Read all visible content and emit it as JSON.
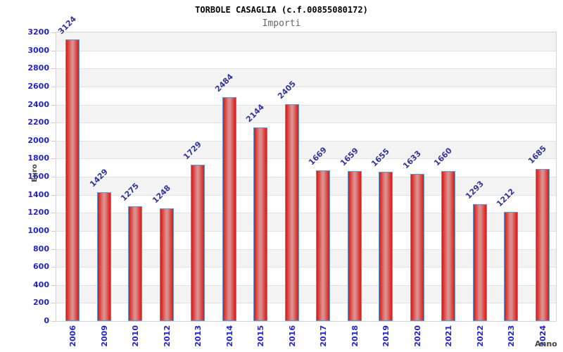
{
  "chart_data": {
    "type": "bar",
    "title": "TORBOLE CASAGLIA (c.f.00855080172)",
    "subtitle": "Importi",
    "xlabel": "Anno",
    "ylabel": "Euro",
    "categories": [
      "2006",
      "2009",
      "2010",
      "2012",
      "2013",
      "2014",
      "2015",
      "2016",
      "2017",
      "2018",
      "2019",
      "2020",
      "2021",
      "2022",
      "2023",
      "2024"
    ],
    "values": [
      3124,
      1429,
      1275,
      1248,
      1729,
      2484,
      2144,
      2405,
      1669,
      1659,
      1655,
      1633,
      1660,
      1293,
      1212,
      1685
    ],
    "ylim": [
      0,
      3200
    ],
    "ytick_step": 200,
    "yticks": [
      3200,
      3000,
      2800,
      2600,
      2400,
      2200,
      2000,
      1800,
      1600,
      1400,
      1200,
      1000,
      800,
      600,
      400,
      200,
      0
    ],
    "grid": "horizontal",
    "background_bands": "alternating",
    "legend": "none",
    "colors": {
      "bar_edge": "#c9201d",
      "bar_bright": "#e03a35",
      "bar_center": "#d99090",
      "bar_border": "#5b9bd5",
      "value_label": "#333399",
      "tick_label": "#2323cc",
      "band": "#f3f3f3",
      "gridline": "#e2e2e2",
      "tick_mark": "#cccccc",
      "plot_border": "#d4d4d4",
      "title": "#000000",
      "subtitle": "#666666",
      "axis_title": "#444444"
    }
  }
}
